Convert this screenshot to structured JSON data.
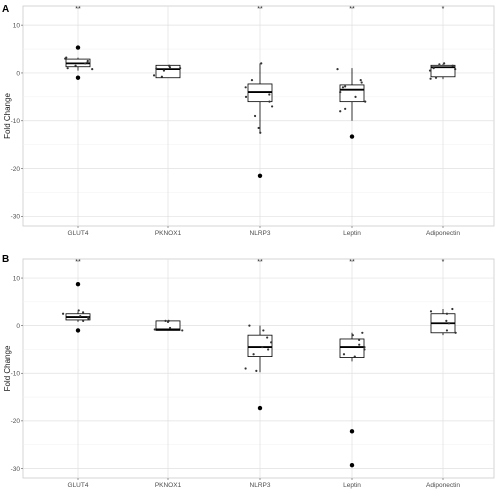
{
  "chart_data": [
    {
      "panel": "A",
      "type": "boxplot",
      "ylabel": "Fold Change",
      "ylim": [
        -32,
        14
      ],
      "yticks": [
        10,
        0,
        -10,
        -20,
        -30
      ],
      "grid": true,
      "categories": [
        "GLUT4",
        "PKNOX1",
        "NLRP3",
        "Leptin",
        "Adiponectin"
      ],
      "significance": [
        "**",
        "",
        "**",
        "**",
        "*"
      ],
      "boxes": [
        {
          "q1": 1.3,
          "median": 2.0,
          "q3": 2.9,
          "whisker_low": 0.5,
          "whisker_high": 3.2,
          "outliers": [
            5.3,
            -1.0
          ]
        },
        {
          "q1": -1.0,
          "median": 0.8,
          "q3": 1.6,
          "whisker_low": -1.0,
          "whisker_high": 1.6,
          "outliers": []
        },
        {
          "q1": -6.0,
          "median": -4.0,
          "q3": -2.3,
          "whisker_low": -12.5,
          "whisker_high": 2.0,
          "outliers": [
            -21.5
          ]
        },
        {
          "q1": -6.0,
          "median": -3.5,
          "q3": -2.5,
          "whisker_low": -10.0,
          "whisker_high": 1.0,
          "outliers": [
            -13.3
          ]
        },
        {
          "q1": -0.8,
          "median": 1.2,
          "q3": 1.6,
          "whisker_low": -1.3,
          "whisker_high": 1.9,
          "outliers": []
        }
      ],
      "points": [
        [
          2.0,
          3.0,
          1.5,
          2.5,
          1.0,
          2.2,
          3.2,
          0.8
        ],
        [
          1.2,
          0.5,
          -0.8,
          1.5,
          0.9,
          -0.5,
          1.0
        ],
        [
          -11.5,
          -9.0,
          -7.0,
          -5.0,
          -4.5,
          -3.0,
          2.0,
          -1.5,
          -12.5,
          -6.0
        ],
        [
          -7.5,
          -6.0,
          -5.0,
          -4.0,
          -3.0,
          -2.0,
          -1.5,
          0.8,
          -8.0,
          -2.8
        ],
        [
          1.5,
          2.0,
          0.8,
          -1.0,
          1.0,
          -1.2,
          1.8,
          0.5
        ]
      ]
    },
    {
      "panel": "B",
      "type": "boxplot",
      "ylabel": "Fold Change",
      "ylim": [
        -32,
        14
      ],
      "yticks": [
        10,
        0,
        -10,
        -20,
        -30
      ],
      "grid": true,
      "categories": [
        "GLUT4",
        "PKNOX1",
        "NLRP3",
        "Leptin",
        "Adiponectin"
      ],
      "significance": [
        "**",
        "",
        "**",
        "**",
        "*"
      ],
      "boxes": [
        {
          "q1": 1.2,
          "median": 1.8,
          "q3": 2.5,
          "whisker_low": 0.8,
          "whisker_high": 3.0,
          "outliers": [
            8.7,
            -1.0
          ]
        },
        {
          "q1": -1.0,
          "median": -0.8,
          "q3": 1.0,
          "whisker_low": -1.0,
          "whisker_high": 1.0,
          "outliers": []
        },
        {
          "q1": -6.5,
          "median": -4.5,
          "q3": -2.0,
          "whisker_low": -9.8,
          "whisker_high": 0.0,
          "outliers": [
            -17.3
          ]
        },
        {
          "q1": -6.7,
          "median": -4.5,
          "q3": -2.8,
          "whisker_low": -7.5,
          "whisker_high": -1.5,
          "outliers": [
            -22.2,
            -29.3
          ]
        },
        {
          "q1": -1.5,
          "median": 0.5,
          "q3": 2.5,
          "whisker_low": -2.0,
          "whisker_high": 3.5,
          "outliers": []
        }
      ],
      "points": [
        [
          3.2,
          2.0,
          1.5,
          2.5,
          1.0,
          2.8,
          1.8
        ],
        [
          1.0,
          -0.5,
          -0.8,
          0.8,
          -1.0,
          1.0
        ],
        [
          -9.0,
          -9.5,
          -6.0,
          -4.5,
          -3.5,
          -2.5,
          0.0,
          -1.0,
          -5.0
        ],
        [
          -6.5,
          -5.0,
          -4.0,
          -3.0,
          -2.0,
          -1.5,
          -4.5,
          -6.0
        ],
        [
          1.0,
          3.5,
          2.5,
          -1.0,
          -1.5,
          0.5,
          3.0
        ]
      ]
    }
  ]
}
